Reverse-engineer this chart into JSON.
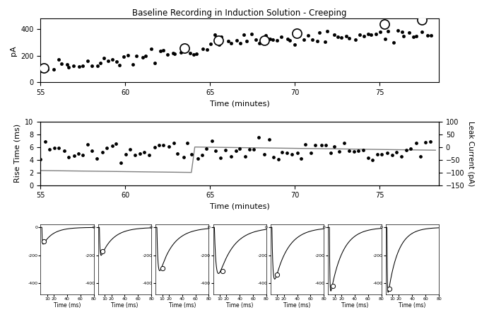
{
  "title": "Baseline Recording in Induction Solution - Creeping",
  "panel1": {
    "xlabel": "Time (minutes)",
    "ylabel": "pA",
    "xlim": [
      55,
      78.5
    ],
    "ylim": [
      0,
      480
    ],
    "yticks": [
      0,
      200,
      400
    ],
    "xticks": [
      55,
      60,
      65,
      70,
      75
    ]
  },
  "panel2": {
    "xlabel": "Time (minutes)",
    "ylabel_left": "Rise Time (ms)",
    "ylabel_right": "Leak Current (pA)",
    "xlim": [
      55,
      78.5
    ],
    "ylim_left": [
      0,
      10
    ],
    "ylim_right": [
      -150,
      100
    ],
    "yticks_left": [
      0,
      2,
      4,
      6,
      8,
      10
    ],
    "yticks_right": [
      -150,
      -100,
      -50,
      0,
      50,
      100
    ],
    "xticks": [
      55,
      60,
      65,
      70,
      75
    ]
  },
  "panel3": {
    "xlabel": "Time (ms)",
    "xlim": [
      0,
      80
    ],
    "ylim": [
      -480,
      20
    ],
    "xticks": [
      10,
      20,
      40,
      60,
      80
    ],
    "yticks": [
      0,
      -200,
      -400
    ],
    "n_subplots": 7
  }
}
